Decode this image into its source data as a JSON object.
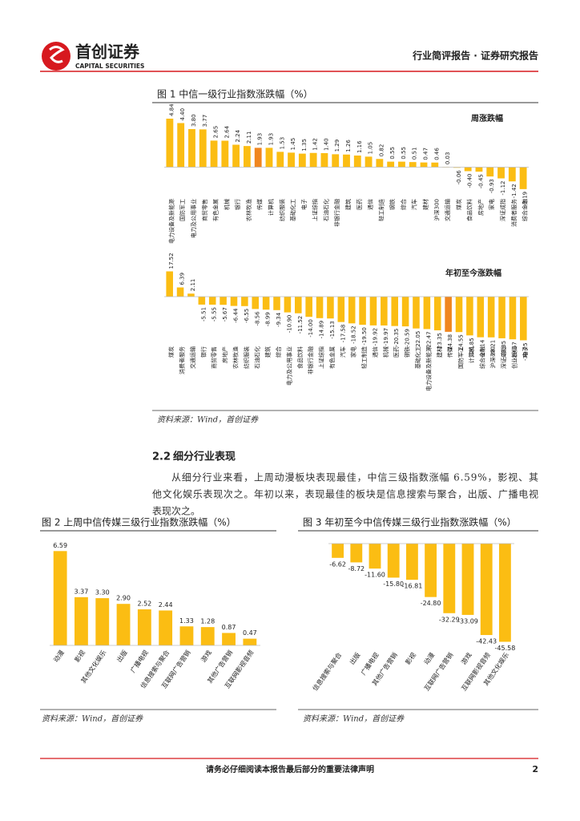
{
  "header": {
    "logo_cn": "首创证券",
    "logo_en": "CAPITAL SECURITIES",
    "report_type": "行业简评报告 · 证券研究报告"
  },
  "figure_titles": [
    "图 1 中信一级行业指数涨跌幅（%）"
  ],
  "sources": [
    "资料来源：Wind，首创证券",
    "资料来源：Wind，首创证券",
    "资料来源：Wind，首创证券"
  ],
  "section": {
    "number": "2.2",
    "title": "细分行业表现"
  },
  "paragraph": [
    "从细分行业来看，上周动漫板块表现最佳，中信三级指数涨幅 6.59%，影视、其",
    "他文化娱乐表现次之。年初以来，表现最佳的板块是信息搜索与聚合，出版、广播电视",
    "表现次之。"
  ],
  "footer": {
    "notice": "请务必仔细阅读本报告最后部分的重要法律声明",
    "page": "2"
  },
  "chart_data": [
    {
      "type": "bar",
      "title": "周涨跌幅",
      "color": "#fbbd13",
      "highlight": {
        "index": 8,
        "color": "#f0861f"
      },
      "ylim": [
        -3,
        5
      ],
      "categories": [
        "电力设备及新能源",
        "国防军工",
        "电力及公用事业",
        "商贸零售",
        "有色金属",
        "机械",
        "银行",
        "农林牧渔",
        "传媒",
        "计算机",
        "纺织服装",
        "基础化工",
        "电子",
        "上证综指",
        "石油石化",
        "非银行金融",
        "建筑",
        "医药",
        "通信",
        "轻工制造",
        "钢铁",
        "综合",
        "汽车",
        "建材",
        "沪深300",
        "交通运输",
        "煤炭",
        "食品饮料",
        "房地产",
        "家电",
        "深证成指",
        "消费者服务",
        "综合金融"
      ],
      "values": [
        4.84,
        4.4,
        3.8,
        3.77,
        2.65,
        2.64,
        2.24,
        2.11,
        1.93,
        1.93,
        1.53,
        1.45,
        1.35,
        1.42,
        1.4,
        1.29,
        1.26,
        1.16,
        1.05,
        0.82,
        0.55,
        0.55,
        0.51,
        0.47,
        0.46,
        0.03,
        -0.06,
        -0.4,
        -0.45,
        -0.93,
        -1.12,
        -1.42,
        -2.19
      ],
      "value_labels": [
        "4.84",
        "4.40",
        "3.80",
        "3.77",
        "2.65",
        "2.64",
        "2.24",
        "2.11",
        "1.93",
        "1.93",
        "1.53",
        "1.45",
        "1.35",
        "1.42",
        "1.40",
        "1.29",
        "1.26",
        "1.16",
        "1.05",
        "0.82",
        "0.55",
        "0.55",
        "0.51",
        "0.47",
        "0.46",
        "0.03",
        "-0.06",
        "-0.40",
        "-0.45",
        "-0.93",
        "-1.12",
        "-1.42",
        "-2.19"
      ]
    },
    {
      "type": "bar",
      "title": "年初至今涨跌幅",
      "color": "#fbbd13",
      "highlight": {
        "index": 26,
        "color": "#f0861f"
      },
      "ylim": [
        -32,
        20
      ],
      "categories": [
        "煤炭",
        "消费者服务",
        "交通运输",
        "银行",
        "商贸零售",
        "房地产",
        "农林牧渔",
        "纺织服装",
        "石油石化",
        "建筑",
        "综合",
        "电力及公用事业",
        "食品饮料",
        "非银行金融",
        "上证综指",
        "有色金属",
        "汽车",
        "家电",
        "轻工制造",
        "通信",
        "机械",
        "医药",
        "钢铁",
        "基础化工",
        "电力设备及新能源",
        "建材",
        "传媒",
        "国防军工",
        "计算机",
        "综合金融",
        "沪深300",
        "深证成指",
        "创业板指",
        "电子"
      ],
      "values": [
        17.52,
        6.39,
        2.11,
        -5.51,
        -5.55,
        -5.67,
        -6.44,
        -6.55,
        -8.56,
        -8.99,
        -9.34,
        -10.9,
        -11.52,
        -14,
        -14.89,
        -15.13,
        -17.58,
        -18.52,
        -19.5,
        -19.92,
        -19.97,
        -20.35,
        -20.59,
        -22.05,
        -22.47,
        -23.35,
        -24.38,
        -24.55,
        -26.85,
        -28.14,
        -28.21,
        -28.85,
        -29.57,
        -30.25
      ],
      "value_labels": [
        "17.52",
        "6.39",
        "2.11",
        "-5.51",
        "-5.55",
        "-5.67",
        "-6.44",
        "-6.55",
        "-8.56",
        "-8.99",
        "-9.34",
        "-10.90",
        "-11.52",
        "-14.00",
        "-14.89",
        "-15.13",
        "-17.58",
        "-18.52",
        "-19.50",
        "-19.92",
        "-19.97",
        "-20.35",
        "-20.59",
        "-22.05",
        "-22.47",
        "-23.35",
        "-24.38",
        "-24.55",
        "-26.85",
        "-28.14",
        "-28.21",
        "-28.85",
        "-29.57",
        "-30.25"
      ]
    },
    {
      "type": "bar",
      "title": "图 2 上周中信传媒三级行业指数涨跌幅（%）",
      "color": "#fbbd13",
      "ylim": [
        0,
        7
      ],
      "categories": [
        "动漫",
        "影视",
        "其他文化娱乐",
        "出版",
        "广播电视",
        "信息搜索与聚合",
        "互联网广告营销",
        "游戏",
        "其他广告营销",
        "互联网影视音频"
      ],
      "values": [
        6.59,
        3.37,
        3.3,
        2.9,
        2.52,
        2.44,
        1.33,
        1.28,
        0.87,
        0.47
      ],
      "value_labels": [
        "6.59",
        "3.37",
        "3.30",
        "2.90",
        "2.52",
        "2.44",
        "1.33",
        "1.28",
        "0.87",
        "0.47"
      ]
    },
    {
      "type": "bar",
      "title": "图 3 年初至今中信传媒三级行业指数涨跌幅（%）",
      "color": "#fbbd13",
      "ylim": [
        -48,
        0
      ],
      "categories": [
        "信息搜索与聚合",
        "出版",
        "广播电视",
        "其他广告营销",
        "影视",
        "动漫",
        "互联网广告营销",
        "游戏",
        "互联网影视音频",
        "其他文化娱乐"
      ],
      "values": [
        -6.62,
        -8.72,
        -11.6,
        -15.8,
        -16.81,
        -24.8,
        -32.29,
        -33.09,
        -42.43,
        -45.58
      ],
      "value_labels": [
        "-6.62",
        "-8.72",
        "-11.60",
        "-15.80",
        "-16.81",
        "-24.80",
        "-32.29",
        "-33.09",
        "-42.43",
        "-45.58"
      ]
    }
  ]
}
